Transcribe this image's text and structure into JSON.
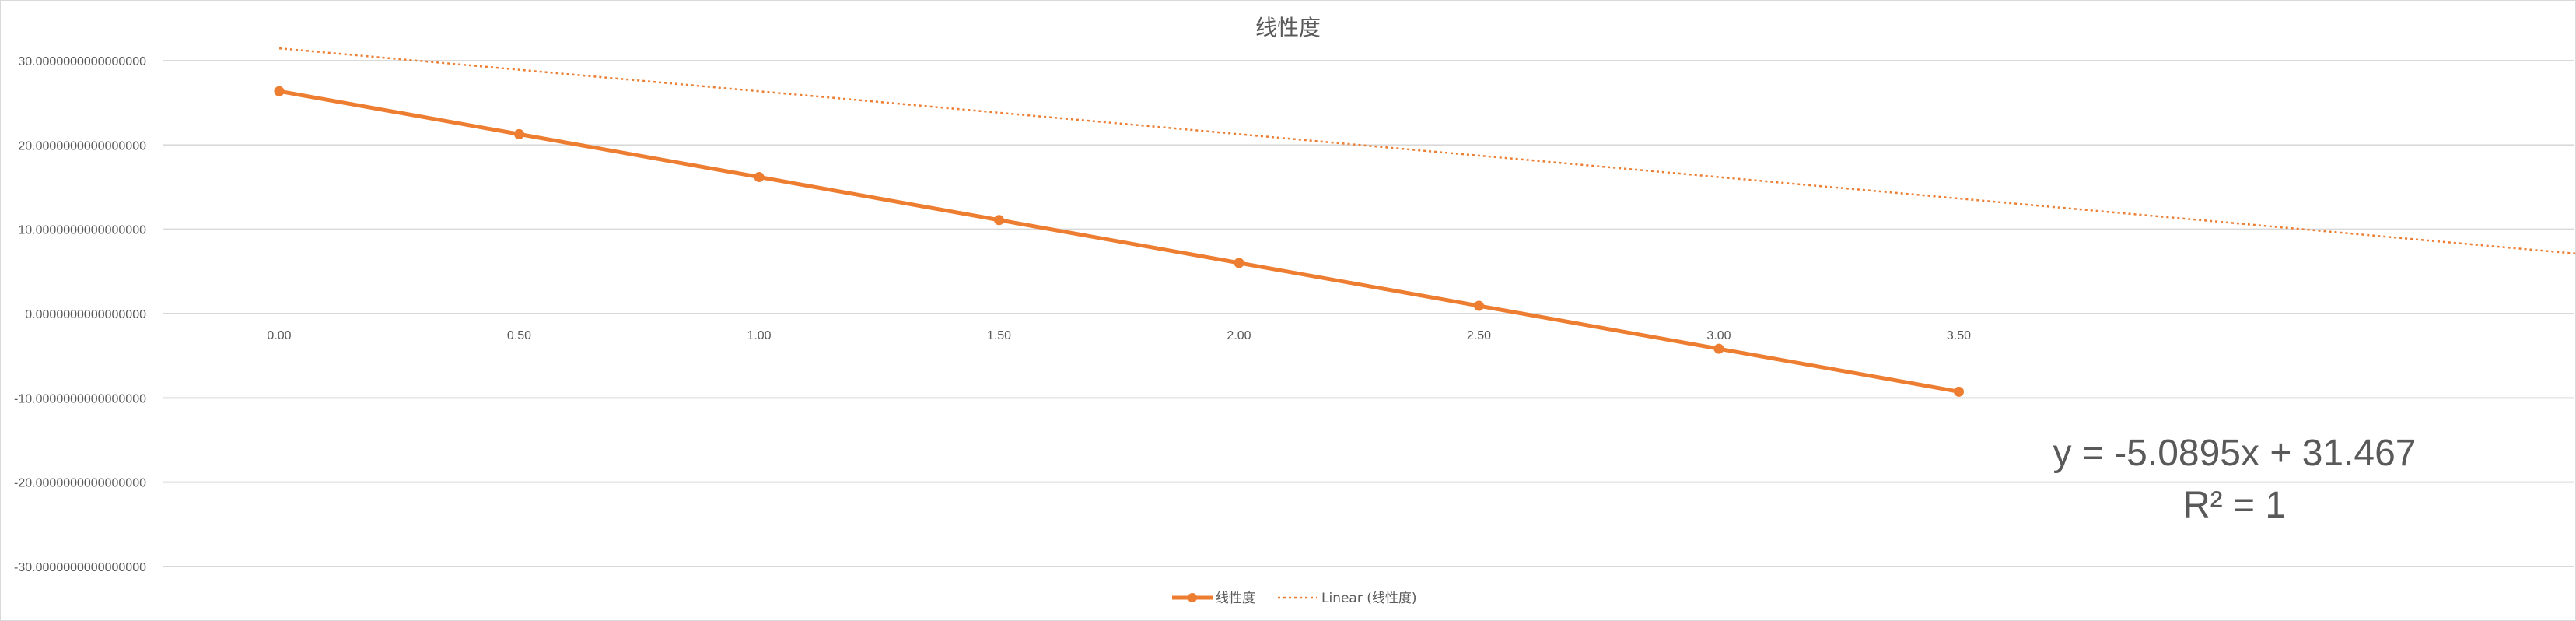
{
  "chart_data": {
    "type": "line",
    "title": "线性度",
    "xlabel": "",
    "ylabel": "",
    "categories": [
      "0.00",
      "0.50",
      "1.00",
      "1.50",
      "2.00",
      "2.50",
      "3.00",
      "3.50"
    ],
    "x": [
      0.0,
      0.5,
      1.0,
      1.5,
      2.0,
      2.5,
      3.0,
      3.5
    ],
    "series": [
      {
        "name": "线性度",
        "values": [
          26.38,
          21.29,
          16.2,
          11.1,
          6.01,
          0.92,
          -4.17,
          -9.26
        ],
        "color": "#ed7d31"
      }
    ],
    "ylim": [
      -30,
      30
    ],
    "yticks": [
      30,
      20,
      10,
      0,
      -10,
      -20,
      -30
    ],
    "ytick_labels": [
      "30.0000000000000000",
      "20.0000000000000000",
      "10.0000000000000000",
      "0.0000000000000000",
      "-10.0000000000000000",
      "-20.0000000000000000",
      "-30.0000000000000000"
    ],
    "grid": true,
    "legend_position": "bottom",
    "legend": [
      "线性度",
      "Linear (线性度)"
    ],
    "trendline": {
      "name": "Linear (线性度)",
      "slope": -5.0895,
      "intercept": 31.467,
      "x_end": 5.52,
      "equation": "y = -5.0895x + 31.467",
      "r_squared": "R² = 1",
      "color": "#ed7d31"
    }
  }
}
